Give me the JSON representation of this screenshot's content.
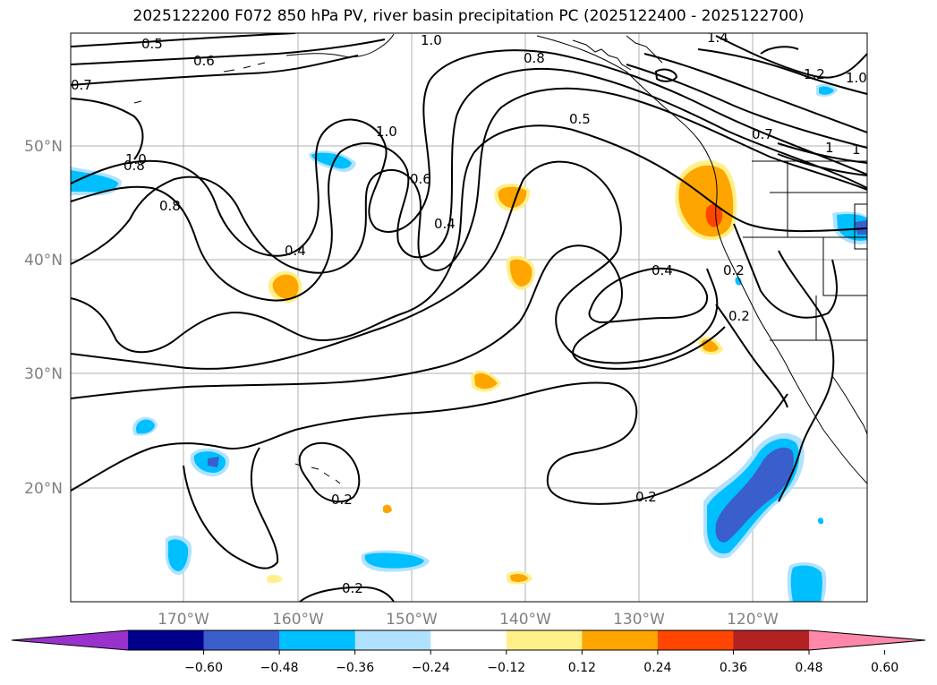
{
  "title": "2025122200 F072 850 hPa PV, river basin precipitation PC (2025122400 - 2025122700)",
  "map": {
    "lon_labels": [
      "170°W",
      "160°W",
      "150°W",
      "140°W",
      "130°W",
      "120°W"
    ],
    "lat_labels": [
      "50°N",
      "40°N",
      "30°N",
      "20°N"
    ]
  },
  "contour_labels": [
    "0.5",
    "0.6",
    "0.7",
    "1.0",
    "0.8",
    "1.4",
    "1.2",
    "1.0",
    "1.0",
    "0.8",
    "0.5",
    "0.7",
    "1",
    "1",
    "1.0",
    "0.8",
    "0.4",
    "0.6",
    "0.4",
    "0.4",
    "0.2",
    "0.2",
    "0.2",
    "0.2",
    "0.2"
  ],
  "colorbar": {
    "ticks": [
      "−0.60",
      "−0.48",
      "−0.36",
      "−0.24",
      "−0.12",
      "0.12",
      "0.24",
      "0.36",
      "0.48",
      "0.60"
    ],
    "colors": [
      "#9932cc",
      "#00008b",
      "#3a5fcd",
      "#00bfff",
      "#b0e2ff",
      "#ffffff",
      "#fff08a",
      "#ffa500",
      "#ff4500",
      "#b22222",
      "#ff88aa"
    ]
  }
}
